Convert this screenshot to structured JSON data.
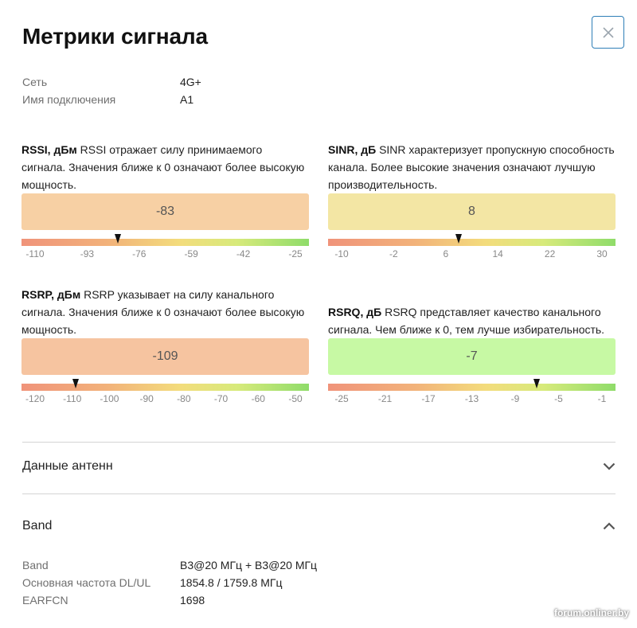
{
  "header": {
    "title": "Метрики сигнала"
  },
  "info": [
    {
      "label": "Сеть",
      "value": "4G+"
    },
    {
      "label": "Имя подключения",
      "value": "A1"
    }
  ],
  "metrics": [
    {
      "name": "RSSI, дБм",
      "description": " RSSI отражает силу принимаемого сигнала. Значения ближе к 0 означают более высокую мощность.",
      "value": "-83",
      "value_number": -83,
      "box_color": "#f7d0a4",
      "scale_min": -110,
      "scale_max": -25,
      "ticks": [
        "-110",
        "-93",
        "-76",
        "-59",
        "-42",
        "-25"
      ]
    },
    {
      "name": "SINR, дБ",
      "description": " SINR характеризует пропускную способность канала. Более высокие значения означают лучшую производительность.",
      "value": "8",
      "value_number": 8,
      "box_color": "#f3e6a4",
      "scale_min": -10,
      "scale_max": 30,
      "ticks": [
        "-10",
        "-2",
        "6",
        "14",
        "22",
        "30"
      ]
    },
    {
      "name": "RSRP, дБм",
      "description": " RSRP указывает на силу канального сигнала. Значения ближе к 0 означают более высокую мощность.",
      "value": "-109",
      "value_number": -109,
      "box_color": "#f6c4a0",
      "scale_min": -120,
      "scale_max": -50,
      "ticks": [
        "-120",
        "-110",
        "-100",
        "-90",
        "-80",
        "-70",
        "-60",
        "-50"
      ]
    },
    {
      "name": "RSRQ, дБ",
      "description": " RSRQ представляет качество канального сигнала. Чем ближе к 0, тем лучше избирательность.",
      "value": "-7",
      "value_number": -7,
      "box_color": "#c7f9a4",
      "scale_min": -25,
      "scale_max": -1,
      "ticks": [
        "-25",
        "-21",
        "-17",
        "-13",
        "-9",
        "-5",
        "-1"
      ]
    }
  ],
  "sections": {
    "antenna": {
      "label": "Данные антенн",
      "expanded": false
    },
    "band": {
      "label": "Band",
      "expanded": true
    }
  },
  "band_details": [
    {
      "label": "Band",
      "value": "B3@20 МГц + B3@20 МГц"
    },
    {
      "label": "Основная частота DL/UL",
      "value": "1854.8 / 1759.8 МГц"
    },
    {
      "label": "EARFCN",
      "value": "1698"
    }
  ],
  "watermark": "forum.onliner.by",
  "icons": {
    "close": "close-icon",
    "collapsed": "chevron-down-icon",
    "expanded": "chevron-up-icon"
  },
  "colors": {
    "accent": "#2f7fb7"
  }
}
